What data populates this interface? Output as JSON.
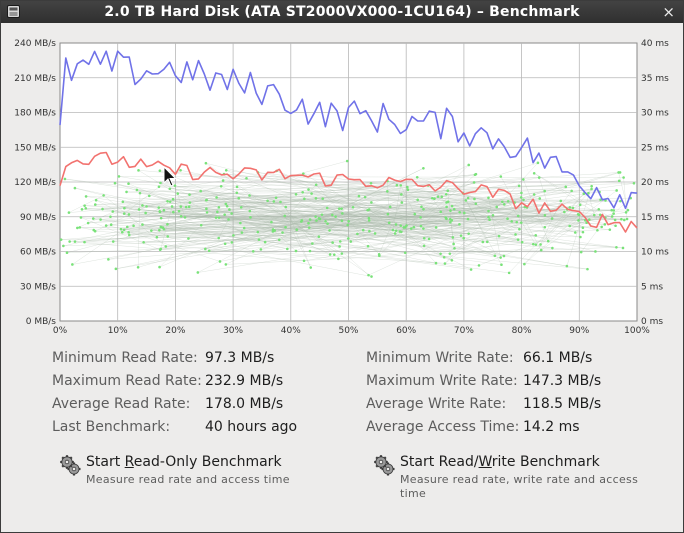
{
  "window": {
    "title": "2.0 TB Hard Disk (ATA ST2000VX000-1CU164) – Benchmark",
    "close_glyph": "×"
  },
  "chart_data": {
    "type": "line",
    "y_left_ticks": [
      "0 MB/s",
      "30 MB/s",
      "60 MB/s",
      "90 MB/s",
      "120 MB/s",
      "150 MB/s",
      "180 MB/s",
      "210 MB/s",
      "240 MB/s"
    ],
    "y_right_ticks": [
      "0 ms",
      "5 ms",
      "10 ms",
      "15 ms",
      "20 ms",
      "25 ms",
      "30 ms",
      "35 ms",
      "40 ms"
    ],
    "x_ticks": [
      "0%",
      "10%",
      "20%",
      "30%",
      "40%",
      "50%",
      "60%",
      "70%",
      "80%",
      "90%",
      "100%"
    ],
    "y_left_range": [
      0,
      240
    ],
    "y_right_range": [
      0,
      40
    ],
    "x_range": [
      0,
      100
    ],
    "grid": true,
    "colors": {
      "read": "#7072e8",
      "write": "#f2726f",
      "access": "#79e279",
      "access_line": "#a8b8a8",
      "grid": "#b8b8b8"
    },
    "read_anchors": [
      [
        0,
        165
      ],
      [
        1,
        215
      ],
      [
        5,
        220
      ],
      [
        10,
        222
      ],
      [
        12,
        215
      ],
      [
        20,
        218
      ],
      [
        25,
        210
      ],
      [
        30,
        205
      ],
      [
        35,
        200
      ],
      [
        40,
        190
      ],
      [
        45,
        178
      ],
      [
        50,
        178
      ],
      [
        55,
        176
      ],
      [
        60,
        172
      ],
      [
        65,
        170
      ],
      [
        68,
        170
      ],
      [
        72,
        162
      ],
      [
        75,
        158
      ],
      [
        80,
        150
      ],
      [
        85,
        135
      ],
      [
        90,
        122
      ],
      [
        95,
        110
      ],
      [
        100,
        108
      ]
    ],
    "write_anchors": [
      [
        0,
        118
      ],
      [
        1,
        140
      ],
      [
        5,
        138
      ],
      [
        10,
        140
      ],
      [
        15,
        132
      ],
      [
        20,
        130
      ],
      [
        25,
        128
      ],
      [
        30,
        126
      ],
      [
        35,
        126
      ],
      [
        40,
        126
      ],
      [
        45,
        123
      ],
      [
        50,
        122
      ],
      [
        55,
        120
      ],
      [
        60,
        118
      ],
      [
        65,
        116
      ],
      [
        70,
        115
      ],
      [
        75,
        110
      ],
      [
        80,
        102
      ],
      [
        85,
        97
      ],
      [
        90,
        90
      ],
      [
        95,
        86
      ],
      [
        100,
        82
      ]
    ],
    "read_min": 97.3,
    "read_max": 232.9,
    "write_min": 66.1,
    "write_max": 147.3,
    "access_range_ms": [
      5,
      25
    ]
  },
  "stats": {
    "min_read_label": "Minimum Read Rate:",
    "min_read_value": "97.3 MB/s",
    "max_read_label": "Maximum Read Rate:",
    "max_read_value": "232.9 MB/s",
    "avg_read_label": "Average Read Rate:",
    "avg_read_value": "178.0 MB/s",
    "last_bench_label": "Last Benchmark:",
    "last_bench_value": "40 hours ago",
    "min_write_label": "Minimum Write Rate:",
    "min_write_value": "66.1 MB/s",
    "max_write_label": "Maximum Write Rate:",
    "max_write_value": "147.3 MB/s",
    "avg_write_label": "Average Write Rate:",
    "avg_write_value": "118.5 MB/s",
    "avg_access_label": "Average Access Time:",
    "avg_access_value": "14.2 ms"
  },
  "actions": {
    "readonly_pre": "Start ",
    "readonly_key": "R",
    "readonly_post": "ead-Only Benchmark",
    "readonly_sub": "Measure read rate and access time",
    "readwrite_pre": "Start Read/",
    "readwrite_key": "W",
    "readwrite_post": "rite Benchmark",
    "readwrite_sub": "Measure read rate, write rate and access time"
  }
}
